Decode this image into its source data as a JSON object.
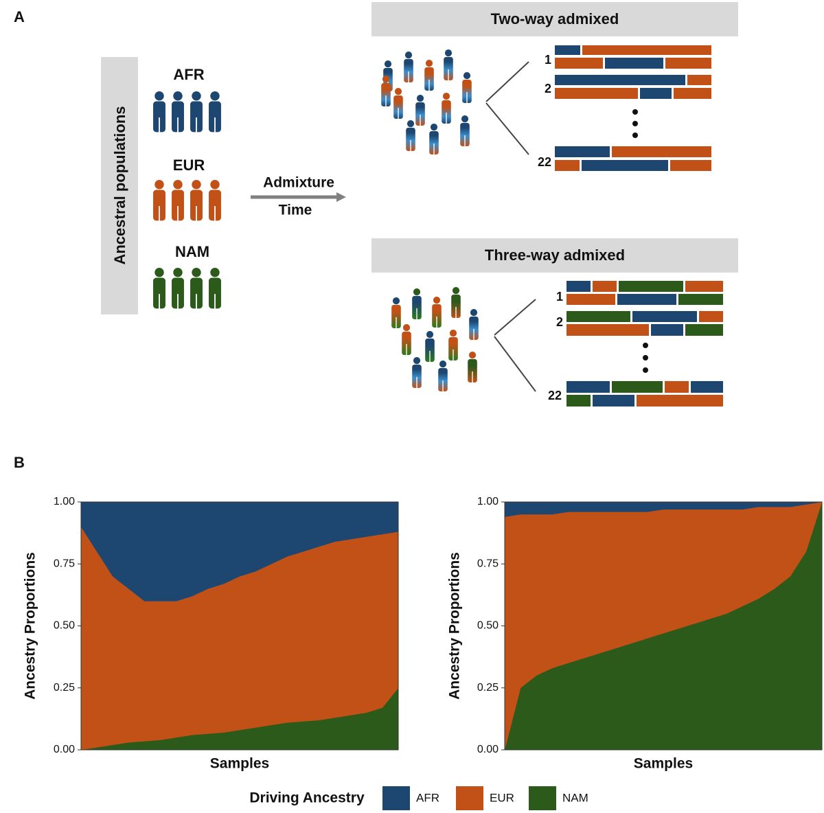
{
  "panel_a": {
    "label": "A",
    "ancestral_label": "Ancestral populations",
    "populations": [
      "AFR",
      "EUR",
      "NAM"
    ],
    "arrow_top": "Admixture",
    "arrow_bottom": "Time",
    "two_way": {
      "title": "Two-way admixed",
      "chromosomes": [
        "1",
        "2",
        "22"
      ]
    },
    "three_way": {
      "title": "Three-way admixed",
      "chromosomes": [
        "1",
        "2",
        "22"
      ]
    }
  },
  "panel_b_label": "B",
  "legend_title": "Driving Ancestry",
  "chart_data": [
    {
      "type": "area",
      "ylabel": "Ancestry Proportions",
      "xlabel": "Samples",
      "x": [
        0,
        1,
        2,
        3,
        4,
        5,
        6,
        7,
        8,
        9,
        10,
        11,
        12,
        13,
        14,
        15,
        16,
        17,
        18,
        19,
        20
      ],
      "xlim": [
        0,
        20
      ],
      "ylim": [
        0,
        1
      ],
      "yticks": [
        {
          "value": 0,
          "label": "0.00"
        },
        {
          "value": 0.25,
          "label": "0.25"
        },
        {
          "value": 0.5,
          "label": "0.50"
        },
        {
          "value": 0.75,
          "label": "0.75"
        },
        {
          "value": 1,
          "label": "1.00"
        }
      ],
      "series": [
        {
          "name": "AFR",
          "color": "#1d4670",
          "values": [
            0.1,
            0.2,
            0.3,
            0.35,
            0.4,
            0.4,
            0.4,
            0.38,
            0.35,
            0.33,
            0.3,
            0.28,
            0.25,
            0.22,
            0.2,
            0.18,
            0.16,
            0.15,
            0.14,
            0.13,
            0.12
          ]
        },
        {
          "name": "EUR",
          "color": "#c25117",
          "values": [
            0.9,
            0.79,
            0.68,
            0.62,
            0.565,
            0.56,
            0.55,
            0.56,
            0.585,
            0.6,
            0.62,
            0.63,
            0.65,
            0.67,
            0.685,
            0.7,
            0.71,
            0.71,
            0.71,
            0.7,
            0.63
          ]
        },
        {
          "name": "NAM",
          "color": "#2b5a1b",
          "values": [
            0,
            0.01,
            0.02,
            0.03,
            0.035,
            0.04,
            0.05,
            0.06,
            0.065,
            0.07,
            0.08,
            0.09,
            0.1,
            0.11,
            0.115,
            0.12,
            0.13,
            0.14,
            0.15,
            0.17,
            0.25
          ]
        }
      ]
    },
    {
      "type": "area",
      "ylabel": "Ancestry Proportions",
      "xlabel": "Samples",
      "x": [
        0,
        1,
        2,
        3,
        4,
        5,
        6,
        7,
        8,
        9,
        10,
        11,
        12,
        13,
        14,
        15,
        16,
        17,
        18,
        19,
        20
      ],
      "xlim": [
        0,
        20
      ],
      "ylim": [
        0,
        1
      ],
      "yticks": [
        {
          "value": 0,
          "label": "0.00"
        },
        {
          "value": 0.25,
          "label": "0.25"
        },
        {
          "value": 0.5,
          "label": "0.50"
        },
        {
          "value": 0.75,
          "label": "0.75"
        },
        {
          "value": 1,
          "label": "1.00"
        }
      ],
      "series": [
        {
          "name": "AFR",
          "color": "#1d4670",
          "values": [
            0.06,
            0.05,
            0.05,
            0.05,
            0.04,
            0.04,
            0.04,
            0.04,
            0.04,
            0.04,
            0.03,
            0.03,
            0.03,
            0.03,
            0.03,
            0.03,
            0.02,
            0.02,
            0.02,
            0.01,
            0
          ]
        },
        {
          "name": "EUR",
          "color": "#c25117",
          "values": [
            0.94,
            0.7,
            0.65,
            0.62,
            0.61,
            0.59,
            0.57,
            0.55,
            0.53,
            0.51,
            0.5,
            0.48,
            0.46,
            0.44,
            0.42,
            0.39,
            0.37,
            0.33,
            0.28,
            0.19,
            0
          ]
        },
        {
          "name": "NAM",
          "color": "#2b5a1b",
          "values": [
            0,
            0.25,
            0.3,
            0.33,
            0.35,
            0.37,
            0.39,
            0.41,
            0.43,
            0.45,
            0.47,
            0.49,
            0.51,
            0.53,
            0.55,
            0.58,
            0.61,
            0.65,
            0.7,
            0.8,
            1
          ]
        }
      ]
    }
  ]
}
